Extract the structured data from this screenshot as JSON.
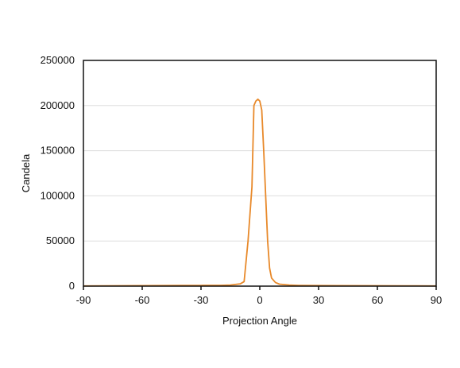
{
  "chart_data": {
    "type": "line",
    "title": "",
    "xlabel": "Projection Angle",
    "ylabel": "Candela",
    "xlim": [
      -90,
      90
    ],
    "ylim": [
      0,
      250000
    ],
    "x_ticks": [
      -90,
      -60,
      -30,
      0,
      30,
      60,
      90
    ],
    "y_ticks": [
      0,
      50000,
      100000,
      150000,
      200000,
      250000
    ],
    "grid": {
      "horizontal": true,
      "vertical": false
    },
    "legend": "none",
    "series": [
      {
        "color": "#e8892a",
        "x": [
          -90,
          -80,
          -60,
          -40,
          -30,
          -20,
          -15,
          -10,
          -8,
          -6,
          -4,
          -3,
          -2,
          -1,
          0,
          1,
          2,
          3,
          4,
          5,
          6,
          8,
          10,
          15,
          20,
          30,
          40,
          60,
          80,
          90
        ],
        "y": [
          200,
          350,
          500,
          700,
          800,
          900,
          1200,
          2500,
          5000,
          50000,
          110000,
          200000,
          205000,
          207000,
          205000,
          195000,
          150000,
          100000,
          50000,
          20000,
          9000,
          4000,
          2200,
          1200,
          800,
          600,
          500,
          400,
          300,
          200
        ]
      }
    ]
  }
}
